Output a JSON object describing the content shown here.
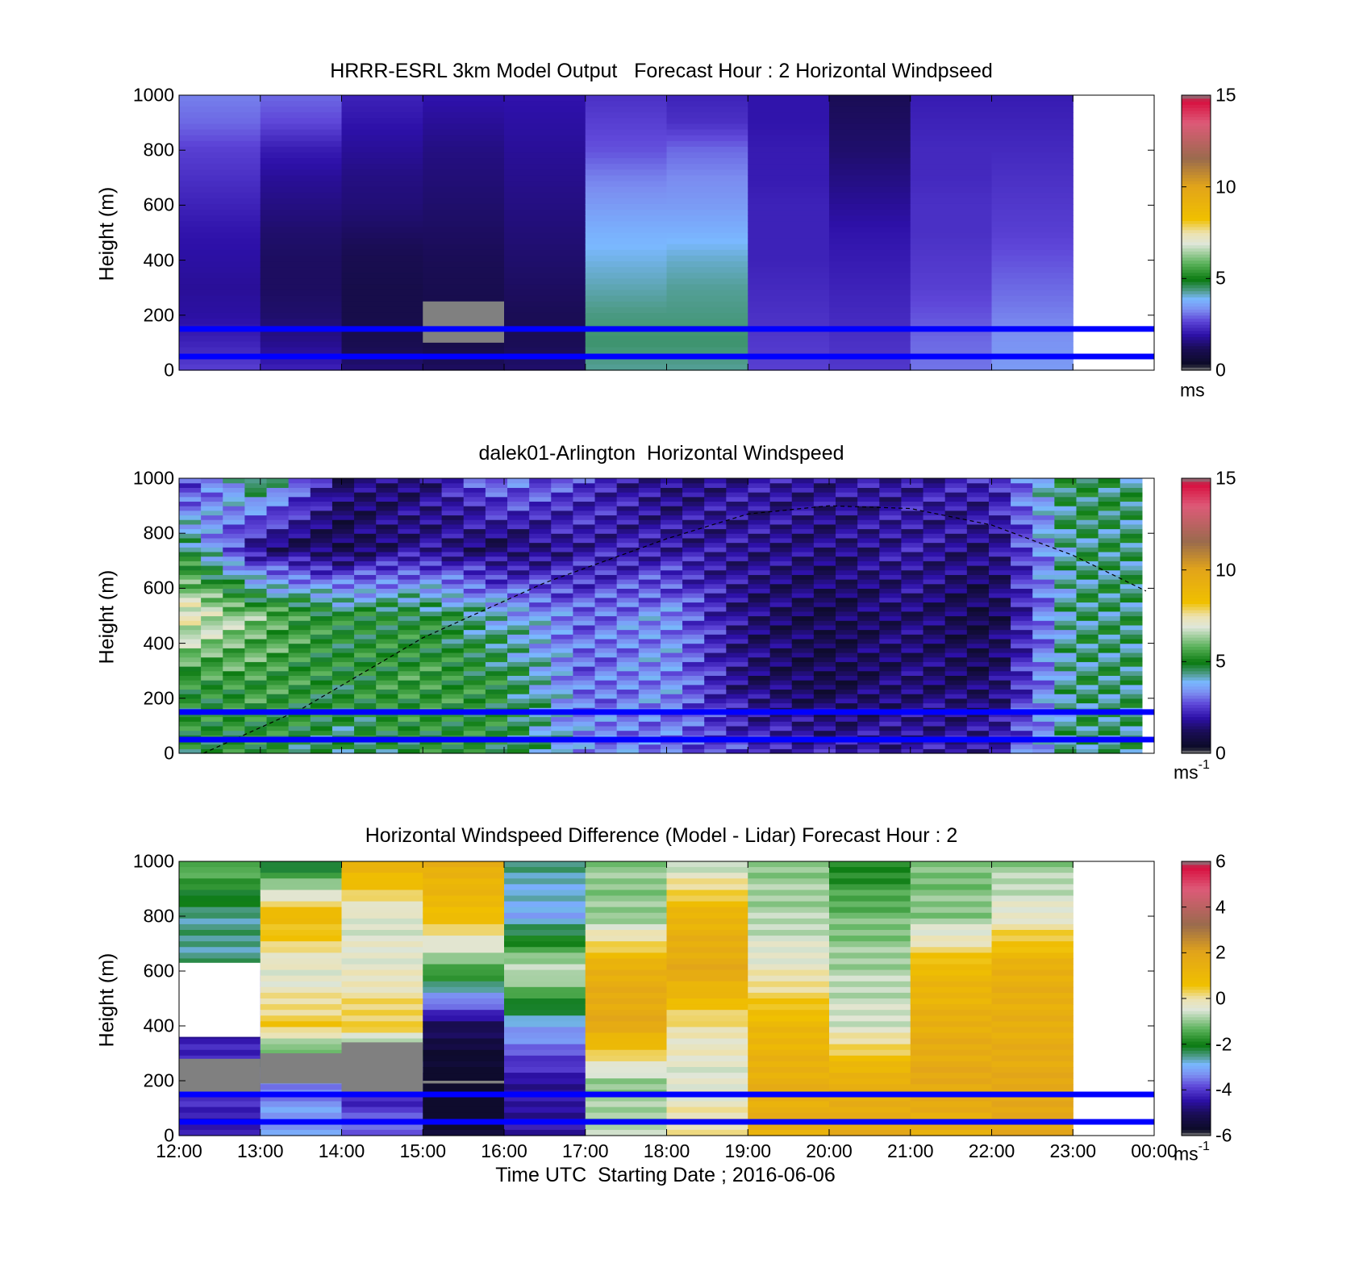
{
  "figure": {
    "xlabel": "Time UTC  Starting Date ; 2016-06-06",
    "xtick_labels": [
      "12:00",
      "13:00",
      "14:00",
      "15:00",
      "16:00",
      "17:00",
      "18:00",
      "19:00",
      "20:00",
      "21:00",
      "22:00",
      "23:00",
      "00:00"
    ]
  },
  "chart_data": [
    {
      "type": "heatmap",
      "title": "HRRR-ESRL 3km Model Output   Forecast Hour : 2 Horizontal Windpseed",
      "ylabel": "Height (m)",
      "ylim": [
        0,
        1000
      ],
      "yticks": [
        "0",
        "200",
        "400",
        "600",
        "800",
        "1000"
      ],
      "x_range_hours": [
        12,
        24
      ],
      "data_end_hour": 23,
      "colorbar": {
        "min": 0,
        "max": 15,
        "ticks": [
          "0",
          "5",
          "10",
          "15"
        ],
        "unit": "ms",
        "unit_sup": ""
      },
      "reference_lines_m": [
        50,
        150
      ],
      "grid_heights_m": [
        1000,
        900,
        800,
        700,
        600,
        500,
        400,
        300,
        200,
        100,
        0
      ],
      "values": [
        [
          3.2,
          3.0,
          2.6,
          2.4,
          2.2,
          2.0,
          1.9,
          1.8,
          1.9,
          2.2,
          2.6
        ],
        [
          3.0,
          2.7,
          2.1,
          1.8,
          1.6,
          1.4,
          1.3,
          1.3,
          1.4,
          1.7,
          2.2
        ],
        [
          2.2,
          2.0,
          1.8,
          1.6,
          1.5,
          1.3,
          1.1,
          1.0,
          1.0,
          1.1,
          1.5
        ],
        [
          2.0,
          1.8,
          1.6,
          1.5,
          1.4,
          1.3,
          1.2,
          1.1,
          1.0,
          1.0,
          1.3
        ],
        [
          2.0,
          1.9,
          1.8,
          1.7,
          1.6,
          1.5,
          1.4,
          1.3,
          1.2,
          1.2,
          1.4
        ],
        [
          2.4,
          2.6,
          2.8,
          3.2,
          3.5,
          3.8,
          4.0,
          4.2,
          4.4,
          4.5,
          4.3
        ],
        [
          2.2,
          2.4,
          3.0,
          3.3,
          3.5,
          3.8,
          4.1,
          4.3,
          4.4,
          4.5,
          4.3
        ],
        [
          2.0,
          2.0,
          2.1,
          2.1,
          2.2,
          2.2,
          2.2,
          2.3,
          2.4,
          2.5,
          2.6
        ],
        [
          1.2,
          1.3,
          1.4,
          1.6,
          1.8,
          2.0,
          2.1,
          2.2,
          2.3,
          2.4,
          2.5
        ],
        [
          2.1,
          2.2,
          2.3,
          2.3,
          2.4,
          2.4,
          2.5,
          2.6,
          2.8,
          3.0,
          3.1
        ],
        [
          2.1,
          2.2,
          2.3,
          2.4,
          2.5,
          2.6,
          2.8,
          3.0,
          3.2,
          3.4,
          3.5
        ]
      ],
      "missing_boxes": [
        {
          "hour": 15,
          "h_from_m": 100,
          "h_to_m": 250
        }
      ]
    },
    {
      "type": "heatmap",
      "title": "dalek01-Arlington  Horizontal Windspeed",
      "ylabel": "Height (m)",
      "ylim": [
        0,
        1000
      ],
      "yticks": [
        "0",
        "200",
        "400",
        "600",
        "800",
        "1000"
      ],
      "x_range_hours": [
        12,
        24
      ],
      "data_end_hour": 23.85,
      "colorbar": {
        "min": 0,
        "max": 15,
        "ticks": [
          "0",
          "5",
          "10",
          "15"
        ],
        "unit": "ms",
        "unit_sup": "-1"
      },
      "reference_lines_m": [
        50,
        150
      ],
      "boundary_curve": {
        "description": "dashed curve",
        "points": [
          [
            12.3,
            0
          ],
          [
            13.5,
            160
          ],
          [
            15,
            420
          ],
          [
            16.5,
            620
          ],
          [
            18,
            780
          ],
          [
            19,
            870
          ],
          [
            20,
            900
          ],
          [
            21,
            890
          ],
          [
            22,
            830
          ],
          [
            23,
            720
          ],
          [
            23.9,
            590
          ]
        ]
      },
      "profile_nodes": [
        {
          "h": 12.0,
          "v": [
            5,
            5,
            7.5,
            5,
            2
          ]
        },
        {
          "h": 13.0,
          "v": [
            5,
            5.5,
            6,
            1.5,
            5
          ]
        },
        {
          "h": 14.0,
          "v": [
            4.5,
            5,
            5,
            1.0,
            1.5
          ]
        },
        {
          "h": 15.0,
          "v": [
            5,
            5.5,
            5,
            1.8,
            1.5
          ]
        },
        {
          "h": 16.0,
          "v": [
            5,
            5,
            4,
            1.2,
            3.5
          ]
        },
        {
          "h": 17.0,
          "v": [
            3.5,
            3,
            3,
            2.0,
            2.5
          ]
        },
        {
          "h": 18.0,
          "v": [
            3,
            3.5,
            3.5,
            2.0,
            1.5
          ]
        },
        {
          "h": 19.0,
          "v": [
            2.5,
            1.5,
            1.5,
            1.8,
            2.0
          ]
        },
        {
          "h": 20.0,
          "v": [
            2,
            1.0,
            1.0,
            1.5,
            1.8
          ]
        },
        {
          "h": 21.0,
          "v": [
            2,
            1.5,
            1.5,
            2.0,
            2.0
          ]
        },
        {
          "h": 22.0,
          "v": [
            2,
            1.2,
            0.8,
            1.5,
            2.2
          ]
        },
        {
          "h": 23.0,
          "v": [
            4.5,
            4.5,
            4.5,
            4.5,
            5.0
          ]
        },
        {
          "h": 23.85,
          "v": [
            4.5,
            4.5,
            4.5,
            4.5,
            4.5
          ]
        }
      ],
      "profile_heights_m": [
        0,
        250,
        500,
        750,
        1000
      ]
    },
    {
      "type": "heatmap",
      "title": "Horizontal Windspeed Difference (Model - Lidar) Forecast Hour : 2",
      "ylabel": "Height (m)",
      "ylim": [
        0,
        1000
      ],
      "yticks": [
        "0",
        "200",
        "400",
        "600",
        "800",
        "1000"
      ],
      "x_range_hours": [
        12,
        24
      ],
      "data_end_hour": 23,
      "colorbar": {
        "min": -6,
        "max": 6,
        "ticks": [
          "-6",
          "-4",
          "-2",
          "0",
          "2",
          "4",
          "6"
        ],
        "unit": "ms",
        "unit_sup": "-1"
      },
      "reference_lines_m": [
        50,
        150
      ],
      "grid_heights_m": [
        1000,
        800,
        600,
        400,
        200,
        0
      ],
      "values": [
        [
          -1.2,
          -2.5,
          null,
          -4.5,
          -4.0,
          -4.5
        ],
        [
          -2.5,
          1.0,
          -0.5,
          0.5,
          -3.5,
          -3.0
        ],
        [
          1.5,
          -0.5,
          -0.3,
          0.5,
          -4.5,
          -3.5
        ],
        [
          1.5,
          0.8,
          -1.5,
          -5.0,
          -6.0,
          -5.5
        ],
        [
          -2.5,
          -3.0,
          -0.5,
          -3.0,
          -4.5,
          -4.5
        ],
        [
          -1.0,
          -1.0,
          1.5,
          1.8,
          -1.0,
          -0.8
        ],
        [
          -0.8,
          1.2,
          1.8,
          0.0,
          -0.5,
          0.2
        ],
        [
          -1.0,
          -0.8,
          -0.2,
          1.0,
          1.5,
          1.5
        ],
        [
          -2.0,
          -1.2,
          -0.8,
          -0.5,
          1.5,
          1.8
        ],
        [
          -1.2,
          -1.0,
          1.0,
          1.5,
          1.8,
          1.5
        ],
        [
          -1.0,
          -0.3,
          1.5,
          1.5,
          1.8,
          1.8
        ]
      ],
      "missing_boxes": [
        {
          "hour": 12,
          "h_from_m": 160,
          "h_to_m": 280
        },
        {
          "hour": 13,
          "h_from_m": 190,
          "h_to_m": 300
        },
        {
          "hour": 14,
          "h_from_m": 150,
          "h_to_m": 340
        },
        {
          "hour": 15,
          "h_from_m": 190,
          "h_to_m": 200
        }
      ],
      "blank_boxes": [
        {
          "hour": 12,
          "h_from_m": 360,
          "h_to_m": 630
        }
      ]
    }
  ]
}
